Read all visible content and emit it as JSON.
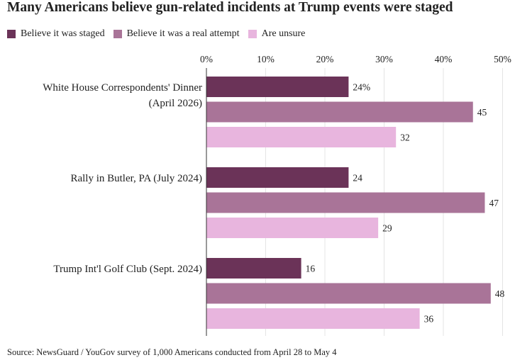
{
  "chart_data": {
    "type": "bar",
    "orientation": "horizontal",
    "title": "Many Americans believe gun-related incidents at Trump events were staged",
    "categories": [
      "White House Correspondents' Dinner (April 2026)",
      "Rally in Butler, PA (July 2024)",
      "Trump Int'l Golf Club (Sept. 2024)"
    ],
    "series": [
      {
        "name": "Believe it was staged",
        "color": "#6b3358",
        "values": [
          24,
          24,
          16
        ],
        "labels": [
          "24%",
          "24",
          "16"
        ]
      },
      {
        "name": "Believe it was a real attempt",
        "color": "#a97498",
        "values": [
          45,
          47,
          48
        ],
        "labels": [
          "45",
          "47",
          "48"
        ]
      },
      {
        "name": "Are unsure",
        "color": "#e8b5de",
        "values": [
          32,
          29,
          36
        ],
        "labels": [
          "32",
          "29",
          "36"
        ]
      }
    ],
    "x_ticks": [
      "0%",
      "10%",
      "20%",
      "30%",
      "40%",
      "50%"
    ],
    "xlim": [
      0,
      50
    ],
    "xlabel": "",
    "ylabel": "",
    "grid": true,
    "legend_position": "top-left",
    "source": "Source: NewsGuard / YouGov survey of 1,000 Americans conducted from April 28 to May 4"
  }
}
